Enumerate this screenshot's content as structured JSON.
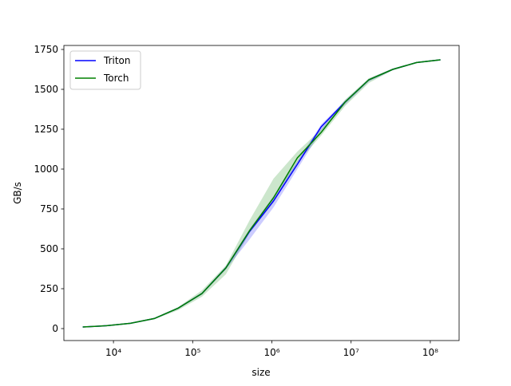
{
  "chart_data": {
    "type": "line",
    "xlabel": "size",
    "ylabel": "GB/s",
    "xscale": "log",
    "legend": "upper left",
    "x": [
      4096,
      8192,
      16384,
      32768,
      65536,
      131072,
      262144,
      524288,
      1048576,
      2097152,
      4194304,
      8388608,
      16777216,
      33554432,
      67108864,
      134217728
    ],
    "series": [
      {
        "name": "Triton",
        "color": "#0000ff",
        "values": [
          10,
          18,
          33,
          63,
          128,
          220,
          380,
          610,
          800,
          1030,
          1265,
          1420,
          1560,
          1625,
          1668,
          1685
        ],
        "lower": [
          9,
          17,
          32,
          61,
          124,
          214,
          370,
          560,
          760,
          1000,
          1240,
          1405,
          1550,
          1620,
          1665,
          1683
        ],
        "upper": [
          11,
          19,
          34,
          65,
          132,
          226,
          390,
          625,
          830,
          1050,
          1280,
          1430,
          1565,
          1630,
          1671,
          1688
        ]
      },
      {
        "name": "Torch",
        "color": "#008000",
        "values": [
          10,
          18,
          33,
          63,
          128,
          220,
          380,
          615,
          820,
          1070,
          1230,
          1420,
          1560,
          1625,
          1668,
          1685
        ],
        "lower": [
          9,
          16,
          31,
          58,
          115,
          200,
          340,
          600,
          790,
          1040,
          1210,
          1395,
          1540,
          1620,
          1663,
          1680
        ],
        "upper": [
          11,
          20,
          35,
          67,
          135,
          240,
          395,
          680,
          940,
          1110,
          1250,
          1435,
          1570,
          1630,
          1672,
          1688
        ]
      }
    ],
    "xlim": [
      2366,
      231000000
    ],
    "xticks": [
      {
        "value": 10000,
        "label": "10⁴"
      },
      {
        "value": 100000,
        "label": "10⁵"
      },
      {
        "value": 1000000,
        "label": "10⁶"
      },
      {
        "value": 10000000,
        "label": "10⁷"
      },
      {
        "value": 100000000,
        "label": "10⁸"
      }
    ],
    "ylim": [
      -75,
      1775
    ],
    "yticks": [
      0,
      250,
      500,
      750,
      1000,
      1250,
      1500,
      1750
    ]
  }
}
